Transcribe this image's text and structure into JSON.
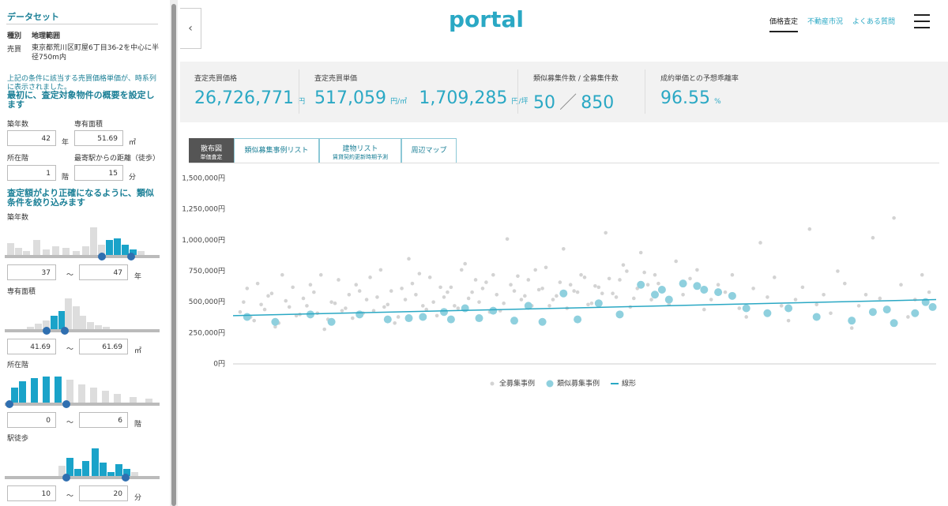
{
  "sidebar": {
    "title": "データセット",
    "table_header": [
      "種別",
      "地理範囲"
    ],
    "table_row": [
      "売買",
      "東京都荒川区町屋6丁目36-2を中心に半径750m内"
    ],
    "note": "上記の条件に該当する売買価格単価が、時系列に表示されました。",
    "heading1": "最初に、査定対象物件の概要を設定します",
    "fields": [
      {
        "label": "築年数",
        "value": "42",
        "unit": "年"
      },
      {
        "label": "専有面積",
        "value": "51.69",
        "unit": "㎡"
      },
      {
        "label": "所在階",
        "value": "1",
        "unit": "階"
      },
      {
        "label": "最寄駅からの距離（徒歩）",
        "value": "15",
        "unit": "分"
      }
    ],
    "heading2": "査定額がより正確になるように、類似条件を絞り込みます",
    "filters": [
      {
        "label": "築年数",
        "min": "37",
        "max": "47",
        "unit": "年"
      },
      {
        "label": "専有面積",
        "min": "41.69",
        "max": "61.69",
        "unit": "㎡"
      },
      {
        "label": "所在階",
        "min": "0",
        "max": "6",
        "unit": "階"
      },
      {
        "label": "駅徒歩",
        "min": "10",
        "max": "20",
        "unit": "分"
      }
    ],
    "range_sep": "〜"
  },
  "header": {
    "logo": "portal",
    "nav": [
      "価格査定",
      "不動産市況",
      "よくある質問"
    ]
  },
  "stats": [
    {
      "label": "査定売買価格",
      "value": "26,726,771",
      "unit": "円"
    },
    {
      "label": "査定売買単価",
      "value": "517,059",
      "unit": "円/㎡",
      "value2": "1,709,285",
      "unit2": "円/坪"
    },
    {
      "label": "類似募集件数 / 全募集件数",
      "value": "50",
      "sep": "／",
      "value2": "850"
    },
    {
      "label": "成約単価との予想乖離率",
      "value": "96.55",
      "unit": "%"
    }
  ],
  "tabs": [
    {
      "label": "散布図",
      "sub": "単価査定"
    },
    {
      "label": "類似募集事例リスト"
    },
    {
      "label": "建物リスト",
      "sub": "賃貸契約更新時期予測"
    },
    {
      "label": "周辺マップ"
    }
  ],
  "chart_data": {
    "type": "scatter",
    "xlim": [
      0,
      100
    ],
    "ylim": [
      0,
      1500000
    ],
    "yticks": [
      {
        "value": 0,
        "label": "0円"
      },
      {
        "value": 250000,
        "label": "250,000円"
      },
      {
        "value": 500000,
        "label": "500,000円"
      },
      {
        "value": 750000,
        "label": "750,000円"
      },
      {
        "value": 1000000,
        "label": "1,000,000円"
      },
      {
        "value": 1250000,
        "label": "1,250,000円"
      },
      {
        "value": 1500000,
        "label": "1,500,000円"
      }
    ],
    "legend": "bottom",
    "series": [
      {
        "name": "全募集事例",
        "color": "#d3d3d3",
        "x": [
          1,
          2,
          3,
          4,
          5,
          6,
          7,
          8,
          9,
          10,
          11,
          12,
          13,
          14,
          15,
          16,
          17,
          18,
          19,
          20,
          21,
          22,
          23,
          24,
          25,
          26,
          27,
          28,
          29,
          30,
          31,
          32,
          33,
          34,
          35,
          36,
          37,
          38,
          39,
          40,
          41,
          42,
          43,
          44,
          45,
          46,
          47,
          48,
          49,
          50,
          51,
          52,
          53,
          54,
          55,
          56,
          57,
          58,
          59,
          60,
          61,
          62,
          63,
          64,
          65,
          66,
          67,
          68,
          69,
          70,
          71,
          72,
          73,
          74,
          75,
          76,
          77,
          78,
          79,
          80,
          81,
          82,
          83,
          84,
          85,
          86,
          87,
          88,
          89,
          90,
          91,
          92,
          93,
          94,
          95,
          96,
          97,
          98,
          99,
          1.5,
          2.5,
          3.5,
          4.5,
          5.5,
          6.5,
          7.5,
          8.5,
          9.5,
          10.5,
          11.5,
          12.5,
          13.5,
          14.5,
          15.5,
          16.5,
          17.5,
          18.5,
          19.5,
          20.5,
          21.5,
          22.5,
          23.5,
          24.5,
          25.5,
          26.5,
          27.5,
          28.5,
          29.5,
          30.5,
          31.5,
          32.5,
          33.5,
          34.5,
          35.5,
          36.5,
          37.5,
          38.5,
          39.5,
          40.5,
          41.5,
          42.5,
          43.5,
          44.5,
          45.5,
          46.5,
          47.5,
          48.5,
          49.5,
          50.5,
          51.5,
          52.5,
          53.5,
          54.5,
          55.5,
          56.5,
          57.5,
          58.5,
          59.5,
          60.5
        ],
        "values": [
          420000,
          610000,
          350000,
          480000,
          550000,
          300000,
          720000,
          460000,
          390000,
          530000,
          640000,
          410000,
          280000,
          500000,
          680000,
          450000,
          370000,
          590000,
          520000,
          430000,
          760000,
          480000,
          330000,
          610000,
          850000,
          560000,
          470000,
          700000,
          390000,
          540000,
          620000,
          450000,
          810000,
          580000,
          500000,
          660000,
          720000,
          430000,
          1010000,
          590000,
          520000,
          680000,
          760000,
          610000,
          470000,
          550000,
          930000,
          640000,
          580000,
          700000,
          490000,
          620000,
          1060000,
          570000,
          680000,
          750000,
          530000,
          900000,
          640000,
          720000,
          600000,
          480000,
          830000,
          560000,
          690000,
          760000,
          440000,
          520000,
          640000,
          580000,
          720000,
          450000,
          380000,
          610000,
          980000,
          540000,
          700000,
          470000,
          350000,
          520000,
          620000,
          1090000,
          480000,
          560000,
          410000,
          750000,
          650000,
          290000,
          470000,
          560000,
          1020000,
          530000,
          430000,
          1180000,
          640000,
          380000,
          520000,
          720000,
          580000,
          500000,
          380000,
          650000,
          440000,
          570000,
          330000,
          510000,
          620000,
          400000,
          470000,
          580000,
          720000,
          360000,
          490000,
          430000,
          560000,
          640000,
          410000,
          700000,
          540000,
          460000,
          590000,
          380000,
          520000,
          650000,
          730000,
          440000,
          500000,
          620000,
          580000,
          470000,
          760000,
          530000,
          680000,
          610000,
          420000,
          560000,
          490000,
          640000,
          710000,
          550000,
          470000,
          600000,
          780000,
          520000,
          660000,
          450000,
          590000,
          720000,
          480000,
          630000,
          570000,
          690000,
          540000,
          800000,
          460000,
          610000,
          740000,
          520000,
          650000
        ]
      },
      {
        "name": "類似募集事例",
        "color": "#8fd0de",
        "x": [
          2,
          6,
          11,
          14,
          18,
          22,
          25,
          27,
          30,
          31,
          33,
          35,
          37,
          40,
          42,
          44,
          47,
          49,
          52,
          55,
          58,
          60,
          61,
          62,
          64,
          66,
          67,
          69,
          71,
          73,
          76,
          79,
          83,
          88,
          91,
          93,
          94,
          97,
          98.5,
          99.5
        ],
        "values": [
          380000,
          340000,
          400000,
          340000,
          400000,
          360000,
          370000,
          380000,
          420000,
          360000,
          450000,
          370000,
          430000,
          350000,
          470000,
          340000,
          570000,
          360000,
          490000,
          400000,
          640000,
          560000,
          600000,
          520000,
          650000,
          630000,
          600000,
          580000,
          550000,
          450000,
          410000,
          450000,
          380000,
          350000,
          420000,
          440000,
          330000,
          410000,
          500000,
          460000
        ]
      },
      {
        "name": "線形",
        "color": "#2aa8c4",
        "type": "line",
        "x": [
          0,
          100
        ],
        "values": [
          390000,
          520000
        ]
      }
    ]
  }
}
